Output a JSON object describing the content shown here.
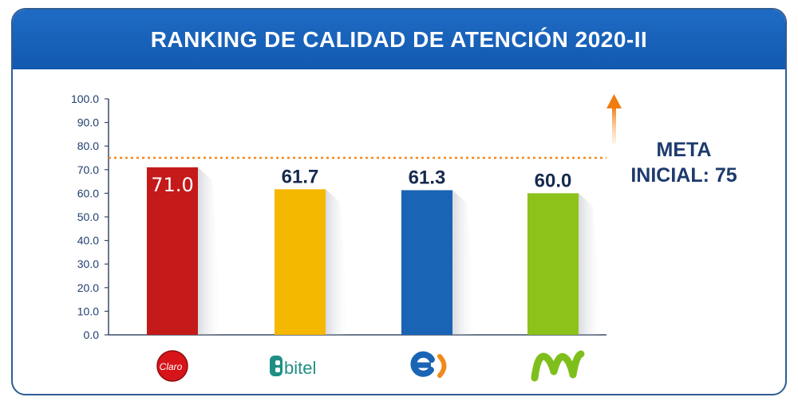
{
  "chart_data": {
    "type": "bar",
    "title": "RANKING DE CALIDAD DE ATENCIÓN 2020-II",
    "categories": [
      "Claro",
      "bitel",
      "entel",
      "movistar"
    ],
    "values": [
      71.0,
      61.7,
      61.3,
      60.0
    ],
    "value_labels": [
      "71.0",
      "61.7",
      "61.3",
      "60.0"
    ],
    "bar_colors": [
      "#c41a1a",
      "#f5b800",
      "#1a64b5",
      "#8cc21a"
    ],
    "ylim": [
      0,
      100
    ],
    "yticks": [
      "0.0",
      "10.0",
      "20.0",
      "30.0",
      "40.0",
      "50.0",
      "60.0",
      "70.0",
      "80.0",
      "90.0",
      "100.0"
    ],
    "grid": false,
    "target": {
      "value": 75,
      "label_line1": "META",
      "label_line2": "INICIAL: 75",
      "color": "#f08a1c"
    }
  },
  "logos": {
    "claro_text": "Claro",
    "bitel_text": "bitel"
  }
}
